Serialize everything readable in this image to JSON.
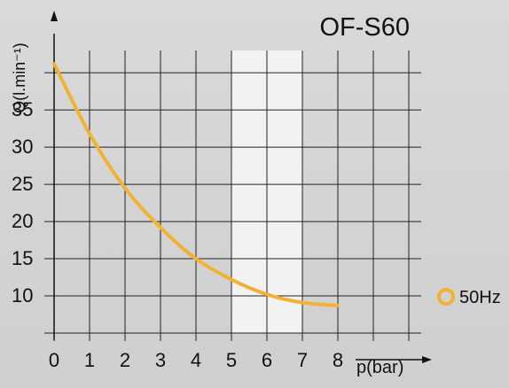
{
  "chart_data": {
    "type": "line",
    "title": "OF-S60",
    "xlabel": "p(bar)",
    "ylabel": "Q(l.min⁻¹)",
    "xlim": [
      0,
      10
    ],
    "ylim": [
      5,
      43
    ],
    "x_ticks": [
      "0",
      "1",
      "2",
      "3",
      "4",
      "5",
      "6",
      "7",
      "8"
    ],
    "y_ticks": [
      "10",
      "15",
      "20",
      "25",
      "30",
      "35"
    ],
    "grid": true,
    "legend": "right",
    "highlight_x_range": [
      5,
      7
    ],
    "series": [
      {
        "name": "50Hz",
        "color": "#f2b133",
        "x": [
          0,
          1,
          2,
          3,
          4,
          5,
          6,
          7,
          8
        ],
        "y": [
          41.2,
          31.8,
          24.5,
          19.2,
          15.0,
          12.2,
          10.2,
          9.1,
          8.7
        ]
      }
    ]
  }
}
